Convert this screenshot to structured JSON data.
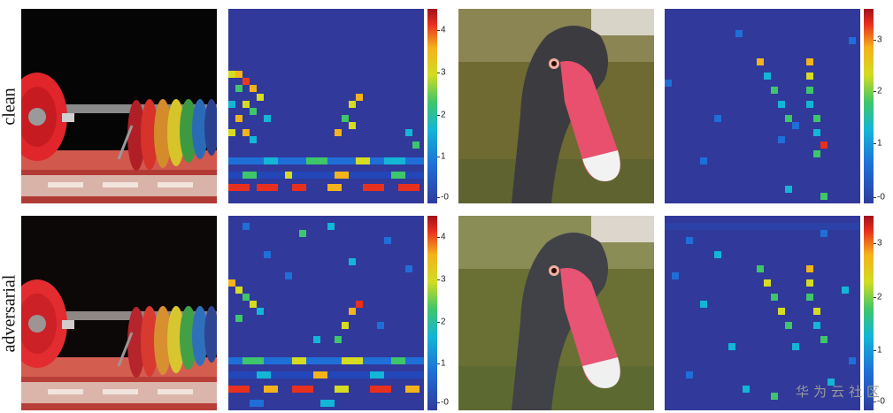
{
  "row_labels": {
    "top": "clean",
    "bottom": "adversarial"
  },
  "colorbars": {
    "left": {
      "ticks": [
        "4",
        "3",
        "2",
        "1",
        "-0"
      ]
    },
    "right": {
      "ticks": [
        "3",
        "2",
        "1",
        "-0"
      ]
    }
  },
  "watermark": "华为云社区",
  "colors": {
    "map_background": "#31399a",
    "photo_dark_background": "#050505",
    "plate_red": "#e0262b",
    "swan_beak_pink": "#e8506e"
  }
}
